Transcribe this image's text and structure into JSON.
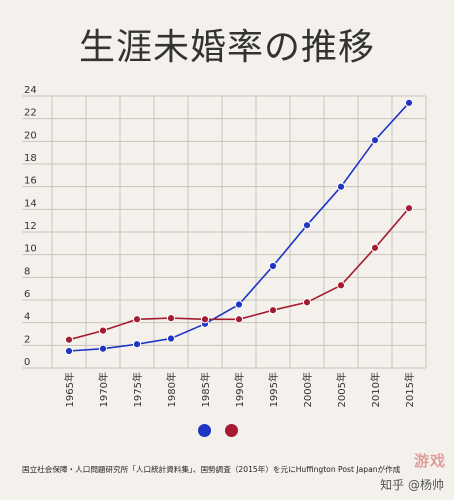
{
  "chart_data": {
    "type": "line",
    "title": "生涯未婚率の推移",
    "categories": [
      "1965年",
      "1970年",
      "1975年",
      "1980年",
      "1985年",
      "1990年",
      "1995年",
      "2000年",
      "2005年",
      "2010年",
      "2015年"
    ],
    "ylim": [
      0,
      24
    ],
    "yticks": [
      0,
      2,
      4,
      6,
      8,
      10,
      12,
      14,
      16,
      18,
      20,
      22,
      24
    ],
    "grid": true,
    "series": [
      {
        "color": "#1f35c4",
        "values": [
          1.5,
          1.7,
          2.1,
          2.6,
          3.9,
          5.6,
          9.0,
          12.6,
          16.0,
          20.1,
          23.4
        ]
      },
      {
        "color": "#a51c30",
        "values": [
          2.5,
          3.3,
          4.3,
          4.4,
          4.3,
          4.3,
          5.1,
          5.8,
          7.3,
          10.6,
          14.1
        ]
      }
    ]
  },
  "source_text": "国立社会保障・人口問題研究所「人口統計資料集」、国勢調査（2015年）を元にHuffington Post Japanが作成",
  "watermark_text": "游戏",
  "credit_text": "知乎 @杨帅"
}
